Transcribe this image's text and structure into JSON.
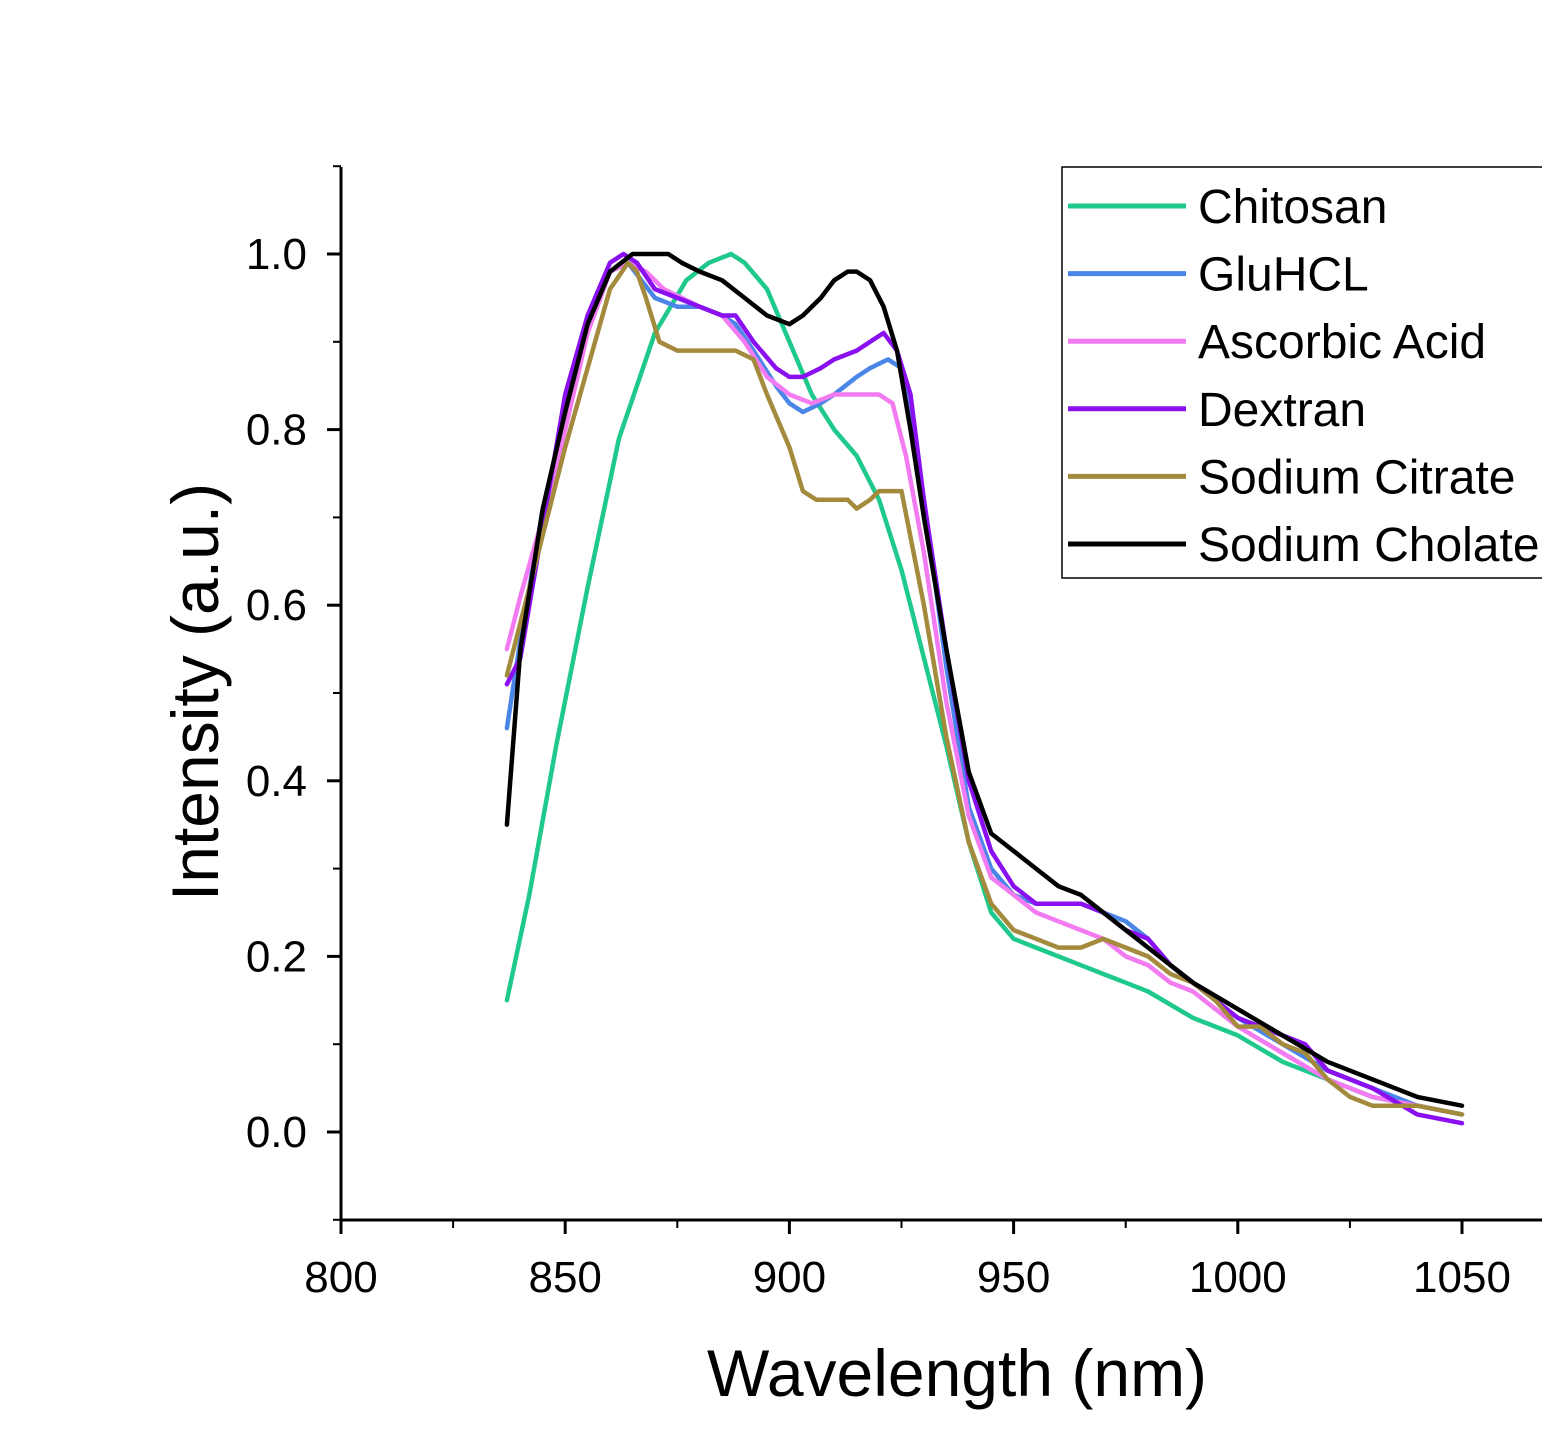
{
  "chart_data": {
    "type": "line",
    "xlabel": "Wavelength (nm)",
    "ylabel": "Intensity (a.u.)",
    "xlim": [
      800,
      1068
    ],
    "ylim": [
      -0.1,
      1.1
    ],
    "x_ticks": [
      800,
      850,
      900,
      950,
      1000,
      1050
    ],
    "x_tick_labels": [
      "800",
      "850",
      "900",
      "950",
      "1000",
      "1050"
    ],
    "y_ticks": [
      0.0,
      0.2,
      0.4,
      0.6,
      0.8,
      1.0
    ],
    "y_tick_labels": [
      "0.0",
      "0.2",
      "0.4",
      "0.6",
      "0.8",
      "1.0"
    ],
    "grid": false,
    "legend_position": "top-right",
    "series": [
      {
        "name": "Chitosan",
        "color": "#1ec98b",
        "x": [
          837,
          842,
          848,
          855,
          862,
          870,
          877,
          882,
          887,
          890,
          895,
          900,
          905,
          910,
          915,
          920,
          925,
          930,
          935,
          940,
          945,
          950,
          955,
          960,
          965,
          970,
          975,
          980,
          990,
          1000,
          1010,
          1020,
          1030,
          1040,
          1050
        ],
        "y": [
          0.15,
          0.27,
          0.44,
          0.62,
          0.79,
          0.91,
          0.97,
          0.99,
          1.0,
          0.99,
          0.96,
          0.9,
          0.84,
          0.8,
          0.77,
          0.72,
          0.64,
          0.54,
          0.44,
          0.33,
          0.25,
          0.22,
          0.21,
          0.2,
          0.19,
          0.18,
          0.17,
          0.16,
          0.13,
          0.11,
          0.08,
          0.06,
          0.04,
          0.03,
          0.02
        ]
      },
      {
        "name": "GluHCL",
        "color": "#4a86e8",
        "x": [
          837,
          840,
          845,
          850,
          855,
          860,
          864,
          867,
          870,
          875,
          880,
          885,
          888,
          892,
          897,
          900,
          903,
          907,
          910,
          915,
          918,
          922,
          925,
          930,
          935,
          940,
          945,
          950,
          955,
          960,
          965,
          970,
          975,
          980,
          985,
          990,
          1000,
          1010,
          1020,
          1030,
          1040,
          1050
        ],
        "y": [
          0.46,
          0.56,
          0.71,
          0.82,
          0.92,
          0.98,
          0.99,
          0.97,
          0.95,
          0.94,
          0.94,
          0.93,
          0.92,
          0.89,
          0.85,
          0.83,
          0.82,
          0.83,
          0.84,
          0.86,
          0.87,
          0.88,
          0.87,
          0.72,
          0.53,
          0.37,
          0.3,
          0.27,
          0.26,
          0.26,
          0.26,
          0.25,
          0.24,
          0.22,
          0.19,
          0.17,
          0.13,
          0.1,
          0.07,
          0.05,
          0.03,
          0.02
        ]
      },
      {
        "name": "Ascorbic Acid",
        "color": "#f27bf2",
        "x": [
          837,
          840,
          845,
          850,
          855,
          860,
          864,
          868,
          872,
          876,
          880,
          885,
          890,
          895,
          900,
          905,
          910,
          915,
          920,
          923,
          926,
          930,
          935,
          940,
          945,
          950,
          955,
          960,
          965,
          970,
          975,
          980,
          985,
          990,
          1000,
          1010,
          1020,
          1030,
          1040,
          1050
        ],
        "y": [
          0.55,
          0.61,
          0.7,
          0.8,
          0.91,
          0.98,
          0.99,
          0.98,
          0.96,
          0.95,
          0.94,
          0.93,
          0.9,
          0.86,
          0.84,
          0.83,
          0.84,
          0.84,
          0.84,
          0.83,
          0.77,
          0.66,
          0.49,
          0.36,
          0.29,
          0.27,
          0.25,
          0.24,
          0.23,
          0.22,
          0.2,
          0.19,
          0.17,
          0.16,
          0.12,
          0.09,
          0.06,
          0.04,
          0.03,
          0.02
        ]
      },
      {
        "name": "Dextran",
        "color": "#8a10f0",
        "x": [
          837,
          840,
          845,
          850,
          855,
          860,
          863,
          866,
          870,
          875,
          880,
          885,
          888,
          892,
          897,
          900,
          903,
          907,
          910,
          915,
          918,
          921,
          924,
          927,
          930,
          935,
          940,
          945,
          950,
          955,
          960,
          965,
          970,
          975,
          980,
          985,
          990,
          1000,
          1010,
          1015,
          1020,
          1030,
          1040,
          1050
        ],
        "y": [
          0.51,
          0.54,
          0.69,
          0.84,
          0.93,
          0.99,
          1.0,
          0.99,
          0.96,
          0.95,
          0.94,
          0.93,
          0.93,
          0.9,
          0.87,
          0.86,
          0.86,
          0.87,
          0.88,
          0.89,
          0.9,
          0.91,
          0.89,
          0.84,
          0.72,
          0.55,
          0.4,
          0.32,
          0.28,
          0.26,
          0.26,
          0.26,
          0.25,
          0.23,
          0.22,
          0.19,
          0.17,
          0.13,
          0.11,
          0.1,
          0.07,
          0.05,
          0.02,
          0.01
        ]
      },
      {
        "name": "Sodium Citrate",
        "color": "#a38a3d",
        "x": [
          837,
          840,
          845,
          850,
          855,
          860,
          864,
          866,
          868,
          871,
          875,
          880,
          885,
          888,
          892,
          895,
          900,
          903,
          906,
          910,
          913,
          915,
          918,
          920,
          925,
          930,
          935,
          940,
          945,
          950,
          955,
          960,
          965,
          970,
          975,
          980,
          985,
          990,
          995,
          1000,
          1005,
          1010,
          1015,
          1020,
          1025,
          1030,
          1040,
          1050
        ],
        "y": [
          0.52,
          0.58,
          0.68,
          0.78,
          0.87,
          0.96,
          0.99,
          0.98,
          0.95,
          0.9,
          0.89,
          0.89,
          0.89,
          0.89,
          0.88,
          0.84,
          0.78,
          0.73,
          0.72,
          0.72,
          0.72,
          0.71,
          0.72,
          0.73,
          0.73,
          0.6,
          0.45,
          0.33,
          0.26,
          0.23,
          0.22,
          0.21,
          0.21,
          0.22,
          0.21,
          0.2,
          0.18,
          0.17,
          0.15,
          0.12,
          0.12,
          0.1,
          0.09,
          0.06,
          0.04,
          0.03,
          0.03,
          0.02
        ]
      },
      {
        "name": "Sodium Cholate",
        "color": "#000000",
        "x": [
          837,
          840,
          845,
          850,
          855,
          860,
          865,
          868,
          870,
          873,
          876,
          880,
          885,
          890,
          895,
          900,
          903,
          907,
          910,
          913,
          915,
          918,
          921,
          924,
          927,
          930,
          935,
          940,
          945,
          950,
          955,
          960,
          965,
          970,
          975,
          980,
          985,
          990,
          1000,
          1010,
          1020,
          1030,
          1040,
          1050
        ],
        "y": [
          0.35,
          0.55,
          0.71,
          0.82,
          0.92,
          0.98,
          1.0,
          1.0,
          1.0,
          1.0,
          0.99,
          0.98,
          0.97,
          0.95,
          0.93,
          0.92,
          0.93,
          0.95,
          0.97,
          0.98,
          0.98,
          0.97,
          0.94,
          0.89,
          0.8,
          0.7,
          0.55,
          0.41,
          0.34,
          0.32,
          0.3,
          0.28,
          0.27,
          0.25,
          0.23,
          0.21,
          0.19,
          0.17,
          0.14,
          0.11,
          0.08,
          0.06,
          0.04,
          0.03
        ]
      }
    ]
  }
}
